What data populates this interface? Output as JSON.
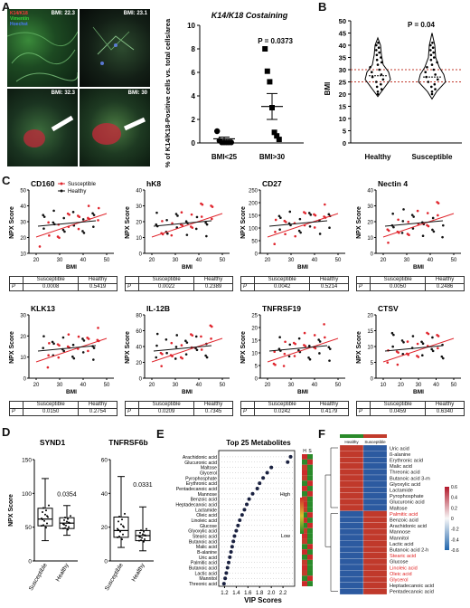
{
  "panel_labels": {
    "A": "A",
    "B": "B",
    "C": "C",
    "D": "D",
    "E": "E",
    "F": "F"
  },
  "panel_a": {
    "stain_labels": [
      "K14/K18 ",
      "Vimentin ",
      "Hoechst"
    ],
    "stain_colors": [
      "#ff3b3b",
      "#37d63a",
      "#4a7cff"
    ],
    "images": [
      {
        "bmi": "BMI: 22.3"
      },
      {
        "bmi": "BMI: 23.1"
      },
      {
        "bmi": "BMI: 32.3"
      },
      {
        "bmi": "BMI: 30"
      }
    ]
  },
  "chart_data": [
    {
      "id": "a-chart",
      "type": "scatter",
      "title": "K14/K18 Costaining",
      "ylabel": "% of K14/K18-Positive cells vs. total cells/area",
      "ylim": [
        0,
        10
      ],
      "yticks": [
        "0",
        "2",
        "4",
        "6",
        "8",
        "10"
      ],
      "categories": [
        "BMI<25",
        "BMI>30"
      ],
      "series": [
        {
          "values": [
            [
              1.0,
              0.2,
              0.05,
              0.05,
              0.05,
              0.05,
              0.05
            ],
            [
              8.0,
              6.1,
              5.2,
              3.0,
              0.9,
              0.6,
              0.3
            ]
          ]
        }
      ],
      "means": [
        0.35,
        3.1
      ],
      "sems": [
        0.15,
        1.1
      ],
      "annotation": "P = 0.0373"
    },
    {
      "id": "b-chart",
      "type": "violin",
      "ylabel": "BMI",
      "ylim": [
        0,
        50
      ],
      "yticks": [
        "0",
        "5",
        "10",
        "15",
        "20",
        "25",
        "30",
        "35",
        "40",
        "45",
        "50"
      ],
      "categories": [
        "Healthy",
        "Susceptible"
      ],
      "reference_lines": [
        25,
        30
      ],
      "annotation": "P = 0.04"
    },
    {
      "id": "c-charts",
      "type": "scatter",
      "ylabel": "NPX Score",
      "xlabel": "BMI",
      "legend": [
        "Susceptible",
        "Healthy"
      ],
      "table_header": [
        "Susceptible",
        "Healthy"
      ],
      "table_row_label": "P",
      "panels": [
        {
          "title": "CD160",
          "xticks": [
            "20",
            "30",
            "40",
            "50"
          ],
          "yticks": [
            "10",
            "20",
            "30",
            "40",
            "50"
          ],
          "p_susceptible": "0.0008",
          "p_healthy": "0.5419"
        },
        {
          "title": "hK8",
          "xticks": [
            "20",
            "30",
            "40",
            "50"
          ],
          "yticks": [
            "0",
            "10",
            "20",
            "30",
            "40"
          ],
          "p_susceptible": "0.0022",
          "p_healthy": "0.2389"
        },
        {
          "title": "CD27",
          "xticks": [
            "20",
            "30",
            "40",
            "50"
          ],
          "yticks": [
            "0",
            "50",
            "100",
            "150",
            "200",
            "250"
          ],
          "p_susceptible": "0.0042",
          "p_healthy": "0.5214"
        },
        {
          "title": "Nectin 4",
          "xticks": [
            "20",
            "30",
            "40",
            "50"
          ],
          "yticks": [
            "0",
            "10",
            "20",
            "30",
            "40"
          ],
          "p_susceptible": "0.0050",
          "p_healthy": "0.2486"
        },
        {
          "title": "KLK13",
          "xticks": [
            "20",
            "30",
            "40",
            "50"
          ],
          "yticks": [
            "0",
            "10",
            "20",
            "30"
          ],
          "p_susceptible": "0.0150",
          "p_healthy": "0.2754"
        },
        {
          "title": "IL-12B",
          "xticks": [
            "20",
            "30",
            "40",
            "50"
          ],
          "yticks": [
            "0",
            "20",
            "40",
            "60",
            "80"
          ],
          "p_susceptible": "0.0209",
          "p_healthy": "0.7345"
        },
        {
          "title": "TNFRSF19",
          "xticks": [
            "20",
            "30",
            "40",
            "50"
          ],
          "yticks": [
            "0",
            "5",
            "10",
            "15",
            "20",
            "25"
          ],
          "p_susceptible": "0.0242",
          "p_healthy": "0.4179"
        },
        {
          "title": "CTSV",
          "xticks": [
            "10",
            "20",
            "30",
            "40",
            "50"
          ],
          "yticks": [
            "0",
            "5",
            "10",
            "15",
            "20"
          ],
          "p_susceptible": "0.0459",
          "p_healthy": "0.6340"
        }
      ]
    },
    {
      "id": "d-charts",
      "type": "box",
      "ylabel": "NPX Score",
      "categories": [
        "Susceptible",
        "Healthy"
      ],
      "panels": [
        {
          "title": "SYND1",
          "ylim": [
            0,
            150
          ],
          "yticks": [
            "0",
            "50",
            "100",
            "150"
          ],
          "annotation": "0.0354"
        },
        {
          "title": "TNFRSF6b",
          "ylim": [
            0,
            60
          ],
          "yticks": [
            "0",
            "20",
            "40",
            "60"
          ],
          "annotation": "0.0331"
        }
      ]
    },
    {
      "id": "e-chart",
      "type": "dot",
      "title": "Top 25 Metabolites",
      "xlabel": "VIP Scores",
      "xlim": [
        1.1,
        2.4
      ],
      "xticks": [
        "1.2",
        "1.4",
        "1.6",
        "1.8",
        "2.0",
        "2.2"
      ],
      "categories": [
        "Arachidonic acid",
        "Glucuronic acid",
        "Maltose",
        "Glycerol",
        "Pyrophosphate",
        "Erythronic acid",
        "Pentadecanoic acid",
        "Mannose",
        "Benzoic acid",
        "Heptadecanoic acid",
        "Lactamide",
        "Oleic acid",
        "Linoleic acid",
        "Glucose",
        "Glyoxylic acid",
        "Stearic acid",
        "Butanoic acid",
        "Malic acid",
        "B-alanine",
        "Uric acid",
        "Palmitic acid",
        "Butanoic acid",
        "Lactic acid",
        "Mannitol",
        "Threonic acid"
      ],
      "values": [
        2.33,
        2.28,
        2.0,
        1.93,
        1.86,
        1.8,
        1.76,
        1.68,
        1.62,
        1.58,
        1.54,
        1.5,
        1.46,
        1.43,
        1.4,
        1.37,
        1.35,
        1.33,
        1.31,
        1.29,
        1.27,
        1.25,
        1.23,
        1.21,
        1.19
      ],
      "legend_high": "High",
      "legend_low": "Low",
      "column_labels": [
        "H",
        "S"
      ]
    },
    {
      "id": "f-chart",
      "type": "heatmap",
      "column_labels": [
        "Healthy",
        "Susceptible"
      ],
      "rows": [
        "Uric acid",
        "ß-alanine",
        "Erythronic acid",
        "Malic acid",
        "Threonic acid",
        "Butanoic acid 3-m",
        "Glyoxylic acid",
        "Lactamide",
        "Pyrophosphate",
        "Glucuronic acid",
        "Maltose",
        "Palmitic acid",
        "Benzoic acid",
        "Arachidonic acid",
        "Mannose",
        "Mannitol",
        "Lactic acid",
        "Butanoic acid 2-h",
        "Stearic acid",
        "Glucose",
        "Linoleic acid",
        "Oleic acid",
        "Glycerol",
        "Heptadecanoic acid",
        "Pentadecanoic acid"
      ],
      "highlighted_rows": [
        "Palmitic acid",
        "Stearic acid",
        "Linoleic acid",
        "Oleic acid",
        "Glycerol"
      ],
      "high_color": "#c0392b",
      "low_color": "#2c5aa0",
      "highlight_text_color": "#e02020",
      "colorbar_ticks": [
        "0.6",
        "0.4",
        "0.2",
        "0",
        "-0.2",
        "-0.4",
        "-0.6"
      ]
    }
  ]
}
